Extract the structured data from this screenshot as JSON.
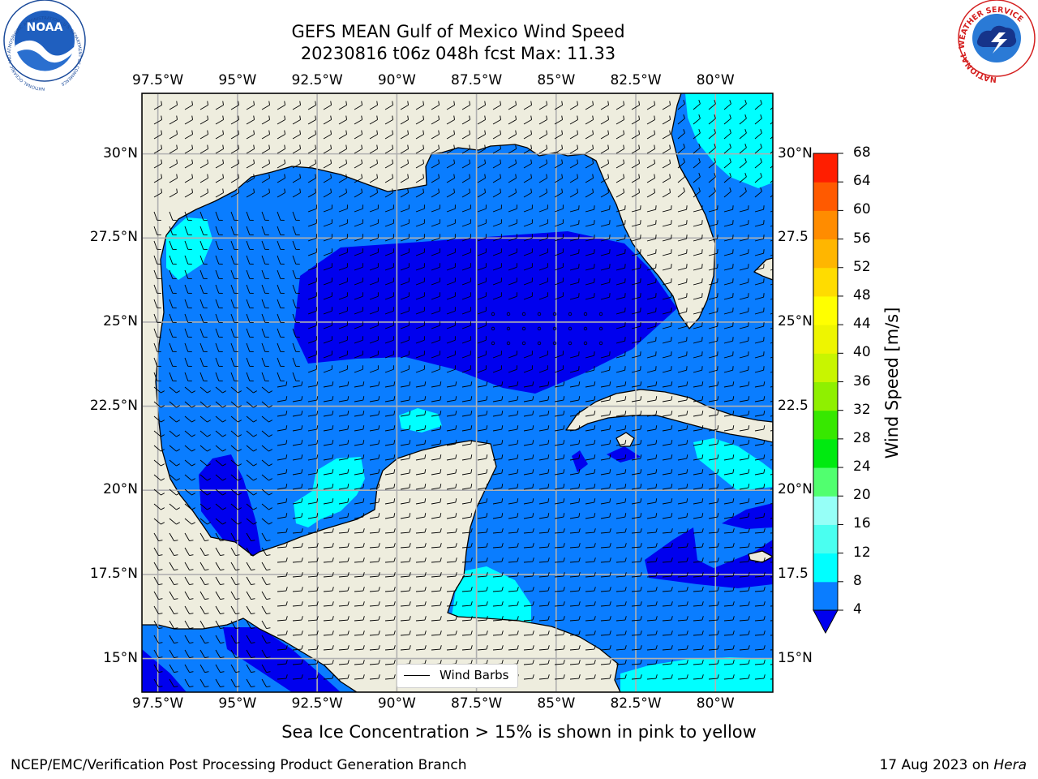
{
  "title": {
    "line1": "GEFS MEAN Gulf of Mexico Wind Speed",
    "line2": "20230816 t06z 048h fcst   Max: 11.33"
  },
  "axes": {
    "lon_labels": [
      "97.5°W",
      "95°W",
      "92.5°W",
      "90°W",
      "87.5°W",
      "85°W",
      "82.5°W",
      "80°W"
    ],
    "lat_labels_left": [
      "30°N",
      "27.5°N",
      "25°N",
      "22.5°N",
      "20°N",
      "17.5°N",
      "15°N"
    ],
    "lat_labels_right": [
      "30°N",
      "27.5",
      "25°N",
      "22.5",
      "20°N",
      "17.5",
      "15°N"
    ],
    "lon_range": [
      -98,
      -78.2
    ],
    "lat_range": [
      14.0,
      31.8
    ]
  },
  "legend": {
    "wind_barbs_label": "Wind Barbs"
  },
  "colorbar": {
    "label": "Wind Speed [m/s]",
    "ticks": [
      "68",
      "64",
      "60",
      "56",
      "52",
      "48",
      "44",
      "40",
      "36",
      "32",
      "28",
      "24",
      "20",
      "16",
      "12",
      "8",
      "4"
    ],
    "levels": [
      4,
      8,
      12,
      16,
      20,
      24,
      28,
      32,
      36,
      40,
      44,
      48,
      52,
      56,
      60,
      64,
      68
    ],
    "colors": [
      "#0a7dff",
      "#00ffff",
      "#4afff0",
      "#96fff7",
      "#51ff6f",
      "#00ea10",
      "#37e800",
      "#8ff000",
      "#c8f500",
      "#eef500",
      "#ffff00",
      "#ffdc00",
      "#ffb600",
      "#ff8c00",
      "#ff5a00",
      "#ff1e00"
    ],
    "under_color": "#0000ee"
  },
  "colors": {
    "land": "#eeedde",
    "ocean_low": "#0000ee",
    "ocean_mid": "#0a7dff",
    "ocean_high": "#00ffff",
    "grid": "#b0b0b0"
  },
  "caption": "Sea Ice Concentration > 15% is shown in pink to yellow",
  "footer": {
    "left": "NCEP/EMC/Verification Post Processing Product Generation Branch",
    "right_prefix": "17 Aug 2023 on ",
    "right_italic": "Hera"
  },
  "logos": {
    "noaa_text": "NOAA",
    "noaa_ring": "NATIONAL OCEANIC AND ATMOSPHERIC ADMINISTRATION · U.S. DEPARTMENT OF COMMERCE",
    "nws_ring": "NATIONAL WEATHER SERVICE"
  }
}
